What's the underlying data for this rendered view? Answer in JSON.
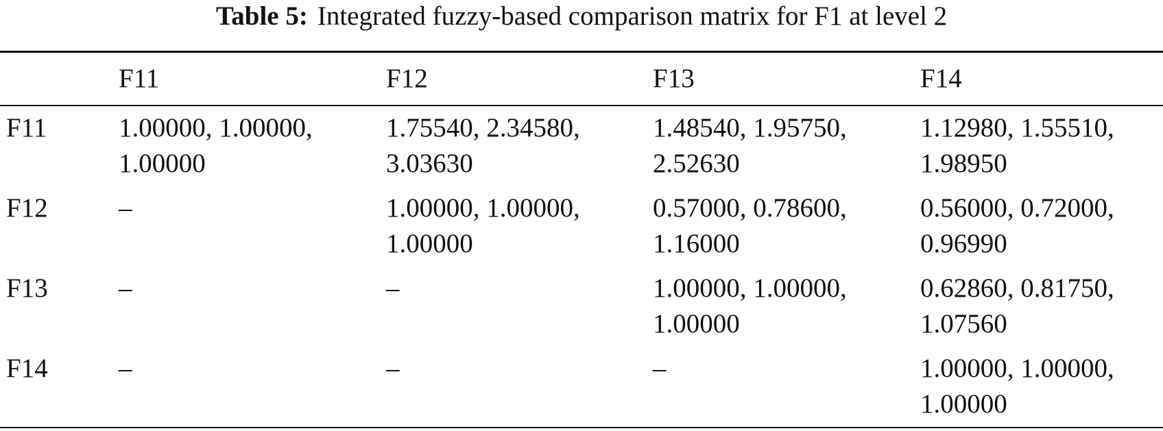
{
  "caption": {
    "label": "Table 5:",
    "text": "Integrated fuzzy-based comparison matrix for F1 at level 2"
  },
  "table": {
    "header": [
      "F11",
      "F12",
      "F13",
      "F14"
    ],
    "rows": [
      {
        "label": "F11",
        "cells": [
          "1.00000, 1.00000, 1.00000",
          "1.75540, 2.34580, 3.03630",
          "1.48540, 1.95750, 2.52630",
          "1.12980, 1.55510, 1.98950"
        ]
      },
      {
        "label": "F12",
        "cells": [
          "–",
          "1.00000, 1.00000, 1.00000",
          "0.57000, 0.78600, 1.16000",
          "0.56000, 0.72000, 0.96990"
        ]
      },
      {
        "label": "F13",
        "cells": [
          "–",
          "–",
          "1.00000, 1.00000, 1.00000",
          "0.62860, 0.81750, 1.07560"
        ]
      },
      {
        "label": "F14",
        "cells": [
          "–",
          "–",
          "–",
          "1.00000, 1.00000, 1.00000"
        ]
      }
    ]
  }
}
